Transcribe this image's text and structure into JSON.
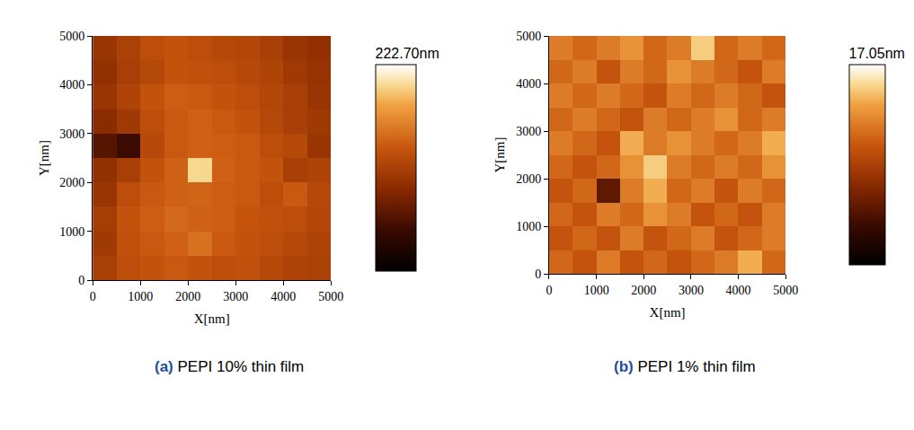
{
  "chart_data": [
    {
      "type": "heatmap",
      "title": "(a) PEPI 10% thin film",
      "x_label": "X[nm]",
      "y_label": "Y[nm]",
      "x": [
        250,
        750,
        1250,
        1750,
        2250,
        2750,
        3250,
        3750,
        4250,
        4750
      ],
      "y": [
        250,
        750,
        1250,
        1750,
        2250,
        2750,
        3250,
        3750,
        4250,
        4750
      ],
      "z": [
        [
          110,
          125,
          130,
          135,
          130,
          125,
          128,
          120,
          115,
          112
        ],
        [
          105,
          128,
          135,
          140,
          150,
          135,
          130,
          125,
          120,
          115
        ],
        [
          108,
          130,
          138,
          145,
          140,
          138,
          132,
          128,
          125,
          118
        ],
        [
          100,
          125,
          135,
          140,
          142,
          138,
          135,
          125,
          135,
          120
        ],
        [
          95,
          110,
          130,
          140,
          200,
          140,
          135,
          130,
          110,
          115
        ],
        [
          60,
          45,
          120,
          135,
          140,
          138,
          135,
          125,
          120,
          100
        ],
        [
          90,
          105,
          125,
          135,
          140,
          135,
          130,
          120,
          110,
          105
        ],
        [
          100,
          115,
          130,
          138,
          135,
          130,
          125,
          118,
          110,
          100
        ],
        [
          95,
          110,
          120,
          130,
          128,
          125,
          120,
          115,
          105,
          98
        ],
        [
          100,
          112,
          125,
          130,
          125,
          120,
          118,
          110,
          100,
          95
        ]
      ],
      "xlim": [
        0,
        5000
      ],
      "ylim": [
        0,
        5000
      ],
      "xticks": [
        0,
        1000,
        2000,
        3000,
        4000,
        5000
      ],
      "yticks": [
        0,
        1000,
        2000,
        3000,
        4000,
        5000
      ],
      "colorbar_range": [
        0,
        222.7
      ],
      "colorbar_title": "222.70nm"
    },
    {
      "type": "heatmap",
      "title": "(b) PEPI 1% thin film",
      "x_label": "X[nm]",
      "y_label": "Y[nm]",
      "x": [
        250,
        750,
        1250,
        1750,
        2250,
        2750,
        3250,
        3750,
        4250,
        4750
      ],
      "y": [
        250,
        750,
        1250,
        1750,
        2250,
        2750,
        3250,
        3750,
        4250,
        4750
      ],
      "z": [
        [
          11,
          10,
          12,
          10,
          11,
          10,
          11,
          12,
          14,
          11
        ],
        [
          10,
          11,
          10,
          12,
          10,
          11,
          12,
          10,
          11,
          12
        ],
        [
          11,
          10,
          12,
          11,
          13,
          12,
          10,
          11,
          10,
          12
        ],
        [
          10,
          11,
          5,
          12,
          14,
          11,
          12,
          10,
          12,
          11
        ],
        [
          11,
          10,
          11,
          13,
          15,
          12,
          11,
          12,
          11,
          13
        ],
        [
          12,
          11,
          10,
          14,
          12,
          13,
          12,
          11,
          12,
          14
        ],
        [
          11,
          12,
          11,
          10,
          12,
          11,
          12,
          13,
          11,
          12
        ],
        [
          12,
          11,
          12,
          11,
          10,
          12,
          11,
          12,
          11,
          10
        ],
        [
          11,
          12,
          10,
          12,
          11,
          13,
          12,
          11,
          10,
          12
        ],
        [
          12,
          11,
          12,
          13,
          11,
          12,
          15,
          11,
          12,
          11
        ]
      ],
      "xlim": [
        0,
        5000
      ],
      "ylim": [
        0,
        5000
      ],
      "xticks": [
        0,
        1000,
        2000,
        3000,
        4000,
        5000
      ],
      "yticks": [
        0,
        1000,
        2000,
        3000,
        4000,
        5000
      ],
      "colorbar_range": [
        0,
        17.05
      ],
      "colorbar_title": "17.05nm"
    }
  ]
}
